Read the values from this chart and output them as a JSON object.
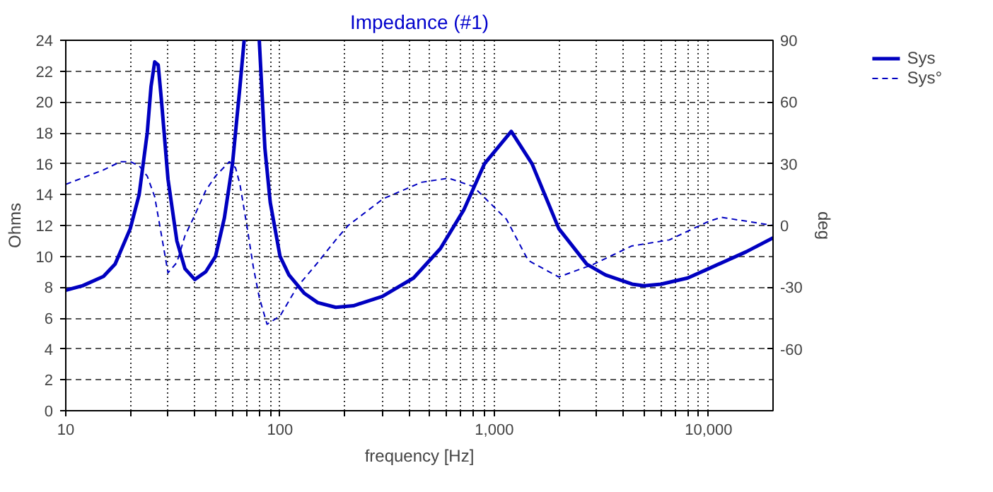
{
  "chart_data": {
    "type": "line",
    "title": "Impedance (#1)",
    "xlabel": "frequency [Hz]",
    "ylabel": "Ohms",
    "y2label": "deg",
    "log": "x",
    "grid": true,
    "legend": "top right",
    "xlim": [
      10,
      20000
    ],
    "ylim": [
      0,
      24
    ],
    "y2lim": [
      -90,
      90
    ],
    "xticks": [
      10,
      {
        "value": 20,
        "label": null
      },
      {
        "value": 30,
        "label": null
      },
      {
        "value": 40,
        "label": null
      },
      {
        "value": 50,
        "label": null
      },
      {
        "value": 60,
        "label": null
      },
      {
        "value": 70,
        "label": null
      },
      {
        "value": 80,
        "label": null
      },
      {
        "value": 90,
        "label": null
      },
      100,
      {
        "value": 200,
        "label": null
      },
      {
        "value": 300,
        "label": null
      },
      {
        "value": 400,
        "label": null
      },
      {
        "value": 500,
        "label": null
      },
      {
        "value": 600,
        "label": null
      },
      {
        "value": 700,
        "label": null
      },
      {
        "value": 800,
        "label": null
      },
      {
        "value": 900,
        "label": null
      },
      {
        "value": 1000,
        "label": "1,000"
      },
      {
        "value": 2000,
        "label": null
      },
      {
        "value": 3000,
        "label": null
      },
      {
        "value": 4000,
        "label": null
      },
      {
        "value": 5000,
        "label": null
      },
      {
        "value": 6000,
        "label": null
      },
      {
        "value": 7000,
        "label": null
      },
      {
        "value": 8000,
        "label": null
      },
      {
        "value": 9000,
        "label": null
      },
      {
        "value": 10000,
        "label": "10,000"
      }
    ],
    "yticks": [
      0,
      2,
      4,
      6,
      8,
      10,
      12,
      14,
      16,
      18,
      20,
      22,
      24
    ],
    "y2ticks": [
      {
        "value": -90,
        "label": null
      },
      -60,
      -30,
      0,
      30,
      60,
      90
    ],
    "series": [
      {
        "name": "Sys",
        "color": "#0000c0",
        "line_style": "solid",
        "x": [
          10,
          12,
          15,
          17,
          20,
          22,
          24,
          25,
          26,
          27,
          28,
          30,
          33,
          36,
          40,
          45,
          50,
          55,
          60,
          65,
          68,
          72,
          80,
          85,
          90,
          100,
          110,
          130,
          150,
          182,
          220,
          300,
          420,
          560,
          720,
          900,
          1200,
          1500,
          2000,
          2700,
          3300,
          4400,
          5000,
          6000,
          8000,
          10000,
          15000,
          20000
        ],
        "values": [
          7.8,
          8.1,
          8.7,
          9.5,
          11.8,
          14,
          18,
          21,
          22.6,
          22.4,
          20,
          15,
          11,
          9.2,
          8.5,
          9,
          10,
          12.5,
          16,
          21,
          24,
          null,
          24,
          17,
          13.5,
          10,
          8.8,
          7.6,
          7,
          6.7,
          6.8,
          7.4,
          8.6,
          10.5,
          13,
          16,
          18.1,
          16,
          11.8,
          9.5,
          8.8,
          8.2,
          8.1,
          8.2,
          8.6,
          9.2,
          10.3,
          11.2
        ]
      },
      {
        "name": "Sys°",
        "color": "#0000c0",
        "line_style": "dashed",
        "axis": "y2",
        "x": [
          10,
          15,
          18,
          20,
          22,
          24,
          26,
          28,
          30,
          33,
          36,
          40,
          45,
          50,
          58,
          62,
          65,
          70,
          75,
          80,
          87,
          100,
          120,
          150,
          182,
          208,
          303,
          457,
          612,
          797,
          1140,
          1440,
          2000,
          2880,
          4370,
          6560,
          10000,
          11500,
          20000
        ],
        "values": [
          20,
          27,
          31,
          31,
          29,
          24,
          14,
          -5,
          -23,
          -18,
          -5,
          5,
          17,
          24,
          31,
          28,
          20,
          0,
          -20,
          -35,
          -48,
          -44,
          -30,
          -18,
          -7,
          0,
          13,
          21,
          23,
          19,
          3,
          -17,
          -25,
          -19,
          -10,
          -7,
          2,
          4,
          0
        ]
      }
    ]
  }
}
